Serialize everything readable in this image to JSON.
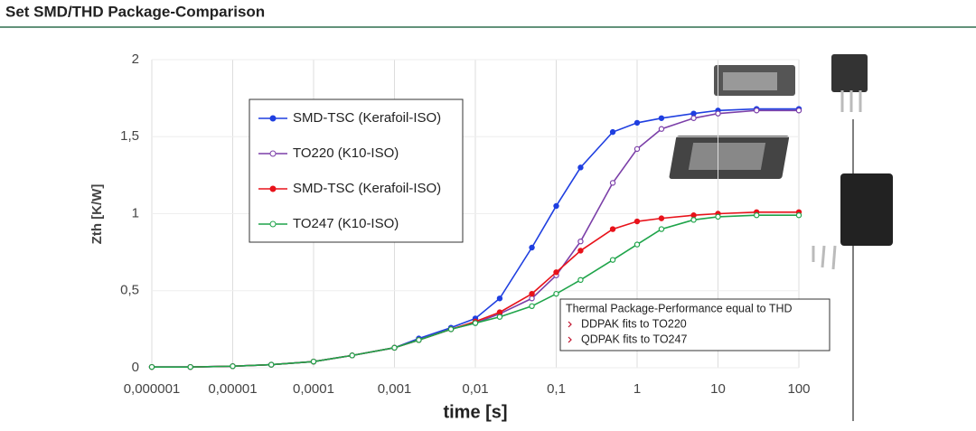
{
  "title": "Set SMD/THD Package-Comparison",
  "chart_data": {
    "type": "line",
    "x_label": "time [s]",
    "y_label": "Zth [K/W]",
    "x_scale": "log",
    "grid": true,
    "xlim": [
      1e-06,
      100
    ],
    "ylim": [
      0,
      2
    ],
    "xticks": [
      {
        "value": 1e-06,
        "label": "0,000001"
      },
      {
        "value": 1e-05,
        "label": "0,00001"
      },
      {
        "value": 0.0001,
        "label": "0,0001"
      },
      {
        "value": 0.001,
        "label": "0,001"
      },
      {
        "value": 0.01,
        "label": "0,01"
      },
      {
        "value": 0.1,
        "label": "0,1"
      },
      1,
      10,
      100
    ],
    "yticks": [
      0,
      {
        "value": 0.5,
        "label": "0,5"
      },
      1,
      {
        "value": 1.5,
        "label": "1,5"
      },
      2
    ],
    "x": [
      1e-06,
      3e-06,
      1e-05,
      3e-05,
      0.0001,
      0.0003,
      0.001,
      0.002,
      0.005,
      0.01,
      0.02,
      0.05,
      0.1,
      0.2,
      0.5,
      1,
      2,
      5,
      10,
      30,
      100
    ],
    "series": [
      {
        "name": "SMD-TSC (Kerafoil-ISO)",
        "color": "#1f3fe0",
        "filled": true,
        "values": [
          0.005,
          0.005,
          0.01,
          0.02,
          0.04,
          0.08,
          0.13,
          0.19,
          0.26,
          0.32,
          0.45,
          0.78,
          1.05,
          1.3,
          1.53,
          1.59,
          1.62,
          1.65,
          1.67,
          1.68,
          1.68
        ]
      },
      {
        "name": "TO220 (K10-ISO)",
        "color": "#7b3fa8",
        "filled": false,
        "values": [
          0.005,
          0.005,
          0.01,
          0.02,
          0.04,
          0.08,
          0.13,
          0.18,
          0.25,
          0.29,
          0.35,
          0.45,
          0.6,
          0.82,
          1.2,
          1.42,
          1.55,
          1.62,
          1.65,
          1.67,
          1.67
        ]
      },
      {
        "name": "SMD-TSC (Kerafoil-ISO)",
        "color": "#e8121a",
        "filled": true,
        "values": [
          0.005,
          0.005,
          0.01,
          0.02,
          0.04,
          0.08,
          0.13,
          0.18,
          0.25,
          0.3,
          0.36,
          0.48,
          0.62,
          0.76,
          0.9,
          0.95,
          0.97,
          0.99,
          1.0,
          1.01,
          1.01
        ]
      },
      {
        "name": "TO247 (K10-ISO)",
        "color": "#1fa44a",
        "filled": false,
        "values": [
          0.005,
          0.005,
          0.01,
          0.02,
          0.04,
          0.08,
          0.13,
          0.18,
          0.25,
          0.29,
          0.33,
          0.4,
          0.48,
          0.57,
          0.7,
          0.8,
          0.9,
          0.96,
          0.98,
          0.99,
          0.99
        ]
      }
    ],
    "annotation": {
      "title": "Thermal Package-Performance equal to THD",
      "items": [
        "DDPAK fits to TO220",
        "QDPAK fits to TO247"
      ]
    }
  }
}
